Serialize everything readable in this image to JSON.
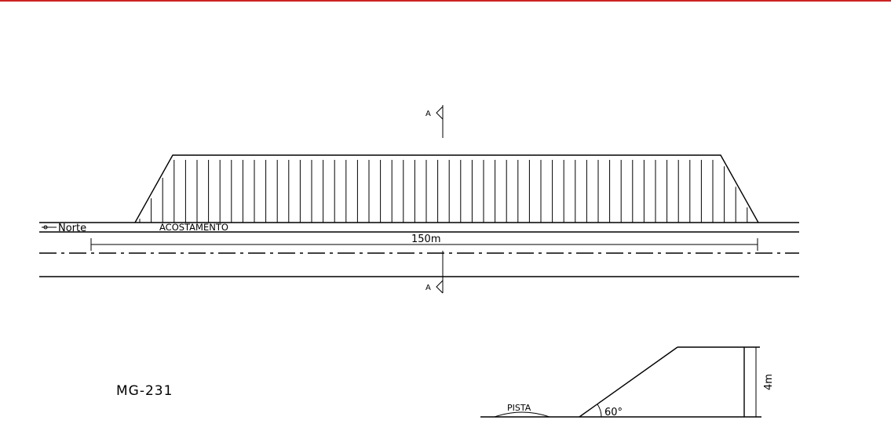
{
  "labels": {
    "north": "Norte",
    "shoulder": "ACOSTAMENTO",
    "length": "150m",
    "section_top": "A",
    "section_bottom": "A",
    "road_code": "MG-231",
    "track": "PISTA",
    "angle": "60°",
    "height": "4m"
  },
  "colors": {
    "top_border": "#cc2222",
    "ink": "#000000",
    "background": "#ffffff"
  }
}
